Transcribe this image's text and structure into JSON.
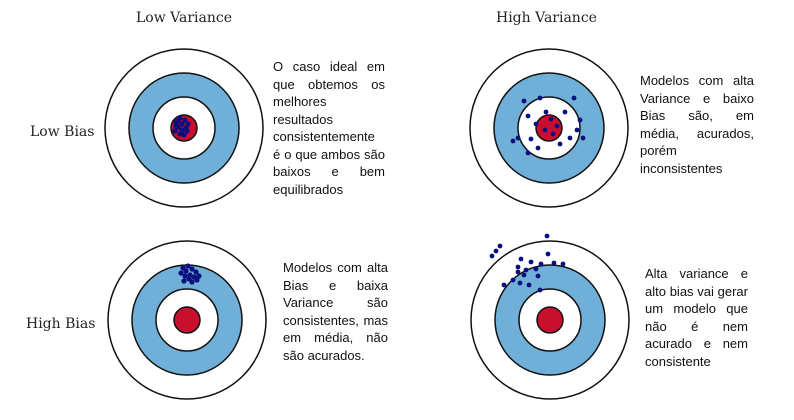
{
  "columns": [
    "Low Variance",
    "High Variance"
  ],
  "rows": [
    "Low Bias",
    "High Bias"
  ],
  "descriptions": {
    "low_bias_low_variance": "O caso ideal em que obtemos os melhores resultados consistentemente é o que ambos são baixos e bem equilibrados",
    "low_bias_high_variance": "Modelos com alta Variance e baixo Bias são, em média, acurados, porém inconsistentes",
    "high_bias_low_variance": "Modelos com alta Bias e baixa Variance são consistentes, mas em média, não são acurados.",
    "high_bias_high_variance": "Alta variance e alto bias vai gerar um modelo que não é nem acurado e nem consistente"
  },
  "colors": {
    "outer_ring": "#ffffff",
    "blue_ring": "#70afd8",
    "inner_ring": "#ffffff",
    "bullseye": "#c8102e",
    "dots": "#0a0f80",
    "outline": "#111111"
  }
}
